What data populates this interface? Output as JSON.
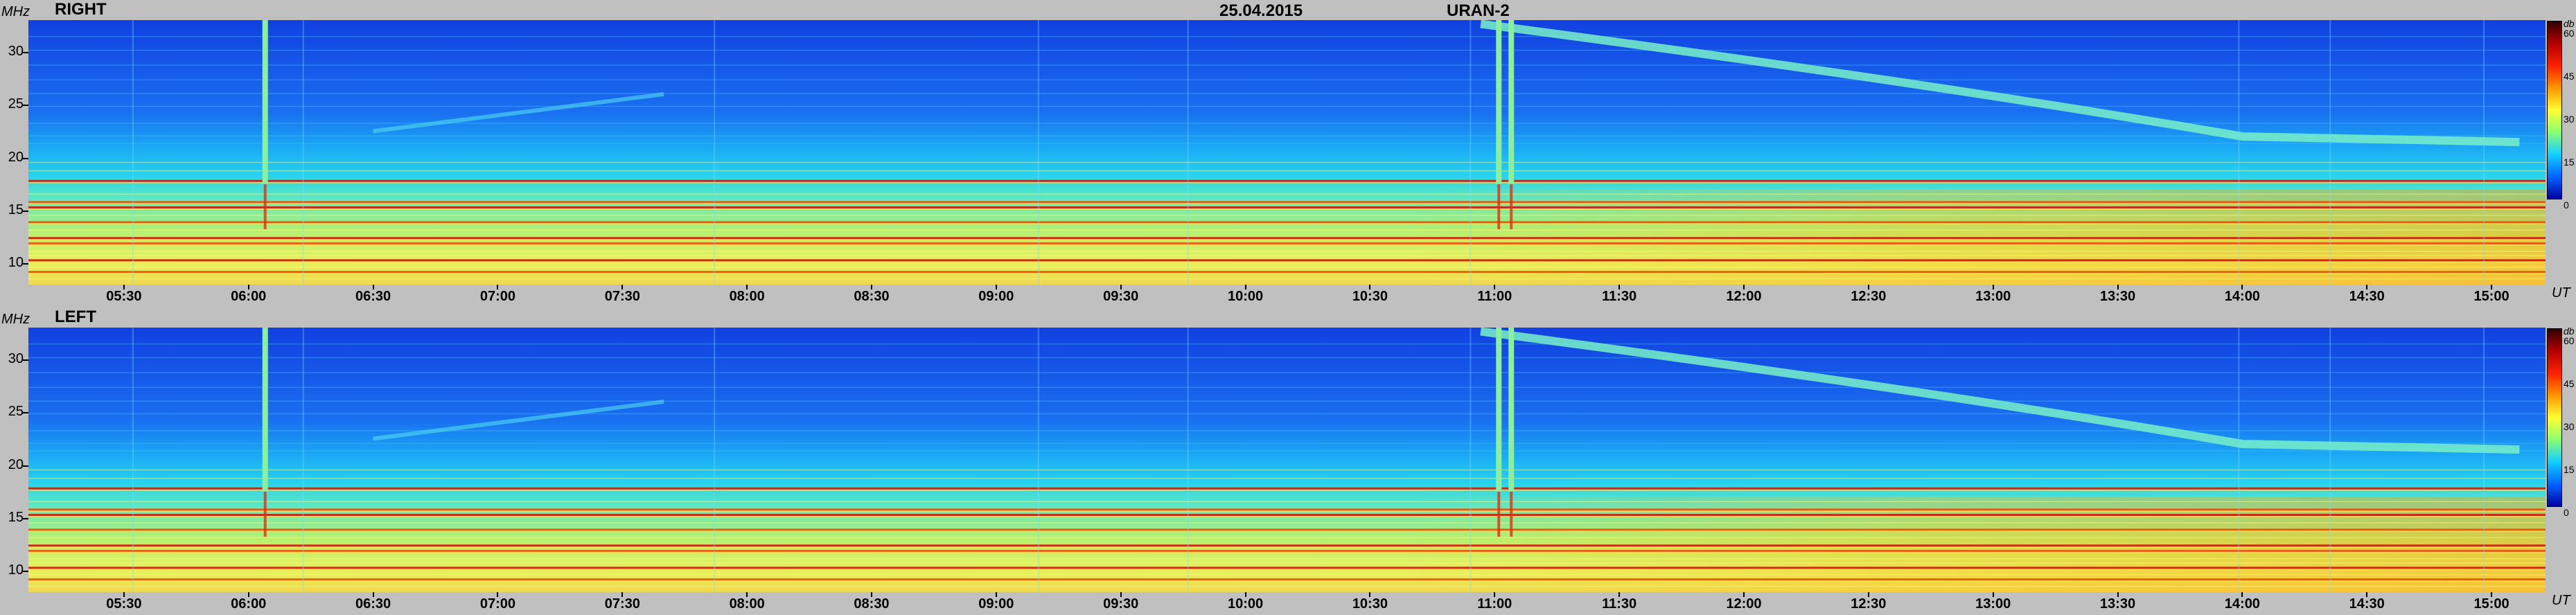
{
  "header": {
    "date": "25.04.2015",
    "observatory": "URAN-2"
  },
  "axis": {
    "y_unit": "MHz",
    "x_unit": "UT",
    "colorbar_unit": "db",
    "colorbar_ticks": [
      "60",
      "45",
      "30",
      "15",
      "0"
    ],
    "y_ticks": [
      "30",
      "25",
      "20",
      "15",
      "10"
    ],
    "x_ticks": [
      "05:30",
      "06:00",
      "06:30",
      "07:00",
      "07:30",
      "08:00",
      "08:30",
      "09:00",
      "09:30",
      "10:00",
      "10:30",
      "11:00",
      "11:30",
      "12:00",
      "12:30",
      "13:00",
      "13:30",
      "14:00",
      "14:30",
      "15:00"
    ]
  },
  "panels": [
    {
      "label": "RIGHT"
    },
    {
      "label": "LEFT"
    }
  ],
  "chart_data": [
    {
      "type": "heatmap",
      "title": "RIGHT",
      "ylabel": "MHz",
      "xlabel": "UT",
      "ylim": [
        8,
        33
      ],
      "xlim": [
        "05:07",
        "15:13"
      ],
      "colorbar": {
        "label": "db",
        "range": [
          0,
          60
        ]
      },
      "features": {
        "bright_horizontal_bands_mhz": [
          17.8,
          15.8,
          15.3,
          13.9,
          12.4,
          11.9,
          10.3,
          9.2
        ],
        "vertical_bursts_ut": [
          "06:04",
          "11:01",
          "11:04"
        ],
        "drifting_band": {
          "start_ut": "11:30",
          "start_mhz": 31,
          "end_ut": "14:00",
          "end_mhz": 22
        }
      }
    },
    {
      "type": "heatmap",
      "title": "LEFT",
      "ylabel": "MHz",
      "xlabel": "UT",
      "ylim": [
        8,
        33
      ],
      "xlim": [
        "05:07",
        "15:13"
      ],
      "colorbar": {
        "label": "db",
        "range": [
          0,
          60
        ]
      },
      "features": {
        "bright_horizontal_bands_mhz": [
          17.8,
          15.8,
          15.3,
          13.9,
          12.4,
          11.9,
          10.3,
          9.2
        ],
        "vertical_bursts_ut": [
          "06:04",
          "11:01",
          "11:04"
        ],
        "drifting_band": {
          "start_ut": "11:30",
          "start_mhz": 31,
          "end_ut": "14:00",
          "end_mhz": 22
        }
      }
    }
  ]
}
